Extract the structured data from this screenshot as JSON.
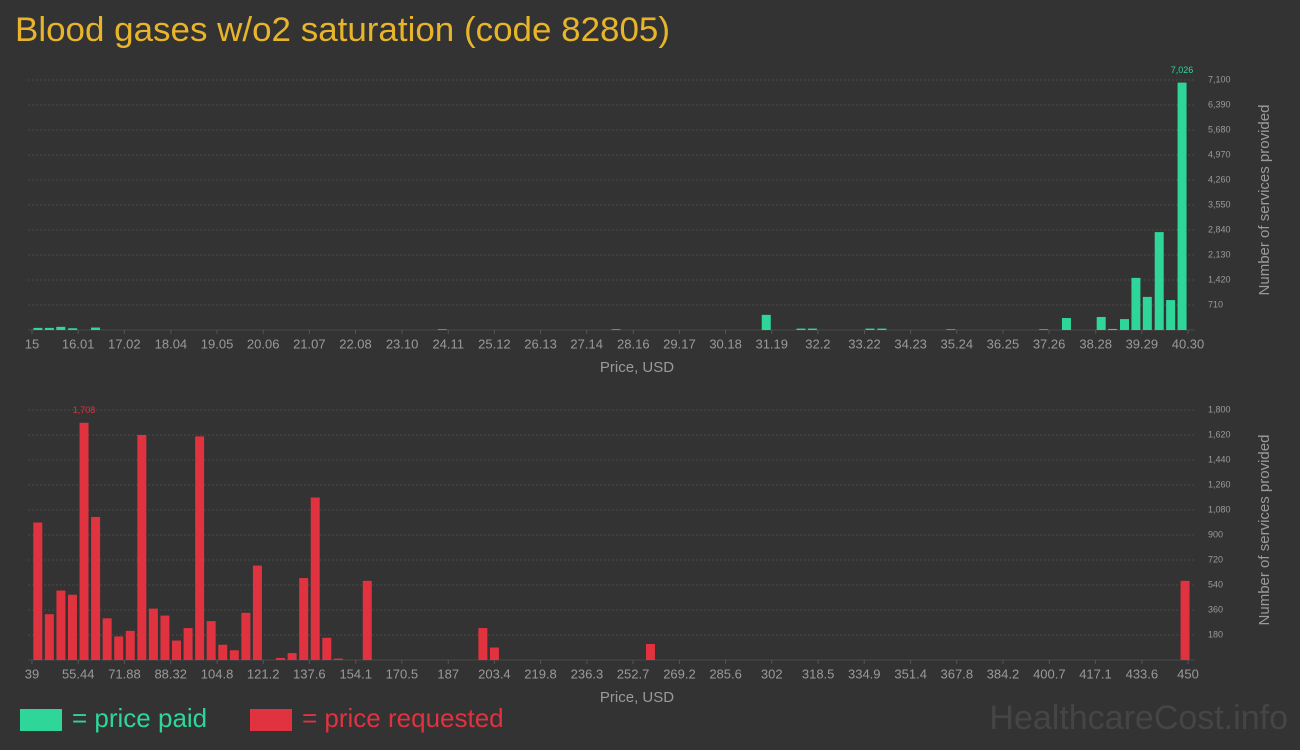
{
  "chart_data": [
    {
      "type": "bar",
      "title": "Blood gases w/o2 saturation (code 82805)",
      "x_label": "Price, USD",
      "y_label": "Number of services provided",
      "xlim": [
        15,
        40.3
      ],
      "ylim": [
        0,
        7100
      ],
      "xticks": [
        15,
        16.01,
        17.02,
        18.04,
        19.05,
        20.06,
        21.07,
        22.08,
        {
          "value": 23.1,
          "label": "23.10"
        },
        24.11,
        25.12,
        26.13,
        27.14,
        28.16,
        29.17,
        30.18,
        31.19,
        32.2,
        33.22,
        34.23,
        35.24,
        36.25,
        37.26,
        38.28,
        39.29,
        {
          "value": 40.3,
          "label": "40.30"
        }
      ],
      "yticks": [
        710,
        {
          "value": 1420,
          "label": "1,420"
        },
        {
          "value": 2130,
          "label": "2,130"
        },
        {
          "value": 2840,
          "label": "2,840"
        },
        {
          "value": 3550,
          "label": "3,550"
        },
        {
          "value": 4260,
          "label": "4,260"
        },
        {
          "value": 4970,
          "label": "4,970"
        },
        {
          "value": 5680,
          "label": "5,680"
        },
        {
          "value": 6390,
          "label": "6,390"
        },
        {
          "value": 7100,
          "label": "7,100"
        }
      ],
      "grid": true,
      "series": [
        {
          "name": "= price paid",
          "color": "#2ed69a",
          "x": [
            15.13,
            15.38,
            15.63,
            15.89,
            16.39,
            23.98,
            27.78,
            31.07,
            31.83,
            32.08,
            33.34,
            33.6,
            35.11,
            37.14,
            37.64,
            38.4,
            38.65,
            38.91,
            39.16,
            39.41,
            39.67,
            39.92,
            40.17
          ],
          "values": [
            60,
            60,
            90,
            50,
            70,
            20,
            20,
            430,
            40,
            40,
            40,
            40,
            20,
            20,
            340,
            370,
            30,
            310,
            1480,
            940,
            2780,
            850,
            7026
          ],
          "value_labels": [
            null,
            null,
            null,
            null,
            null,
            null,
            null,
            null,
            null,
            null,
            null,
            null,
            null,
            null,
            null,
            null,
            null,
            null,
            null,
            null,
            null,
            null,
            "7,026"
          ]
        }
      ]
    },
    {
      "type": "bar",
      "x_label": "Price, USD",
      "y_label": "Number of services provided",
      "xlim": [
        39,
        450
      ],
      "ylim": [
        0,
        1800
      ],
      "xticks": [
        39,
        55.44,
        71.88,
        88.32,
        104.8,
        121.2,
        137.6,
        154.1,
        170.5,
        187,
        203.4,
        219.8,
        236.3,
        252.7,
        269.2,
        285.6,
        302,
        318.5,
        334.9,
        351.4,
        367.8,
        384.2,
        400.7,
        417.1,
        433.6,
        450
      ],
      "yticks": [
        180,
        360,
        540,
        720,
        900,
        {
          "value": 1080,
          "label": "1,080"
        },
        {
          "value": 1260,
          "label": "1,260"
        },
        {
          "value": 1440,
          "label": "1,440"
        },
        {
          "value": 1620,
          "label": "1,620"
        },
        {
          "value": 1800,
          "label": "1,800"
        }
      ],
      "grid": true,
      "series": [
        {
          "name": "= price requested",
          "color": "#e0323f",
          "x": [
            41.06,
            45.17,
            49.28,
            53.39,
            57.5,
            61.61,
            65.72,
            69.83,
            73.94,
            78.05,
            82.16,
            86.27,
            90.38,
            94.49,
            98.6,
            102.71,
            106.82,
            110.93,
            115.04,
            119.15,
            127.37,
            131.48,
            135.59,
            139.7,
            143.81,
            147.92,
            158.2,
            199.3,
            203.41,
            258.89,
            448.95
          ],
          "values": [
            990,
            330,
            500,
            470,
            1708,
            1030,
            300,
            170,
            210,
            1620,
            370,
            320,
            140,
            230,
            1610,
            280,
            110,
            70,
            340,
            680,
            15,
            50,
            590,
            1170,
            160,
            10,
            570,
            230,
            90,
            115,
            570
          ],
          "value_labels": [
            null,
            null,
            null,
            null,
            "1,708",
            null,
            null,
            null,
            null,
            null,
            null,
            null,
            null,
            null,
            null,
            null,
            null,
            null,
            null,
            null,
            null,
            null,
            null,
            null,
            null,
            null,
            null,
            null,
            null,
            null,
            null
          ]
        }
      ]
    }
  ],
  "watermark": "HealthcareCost.info"
}
